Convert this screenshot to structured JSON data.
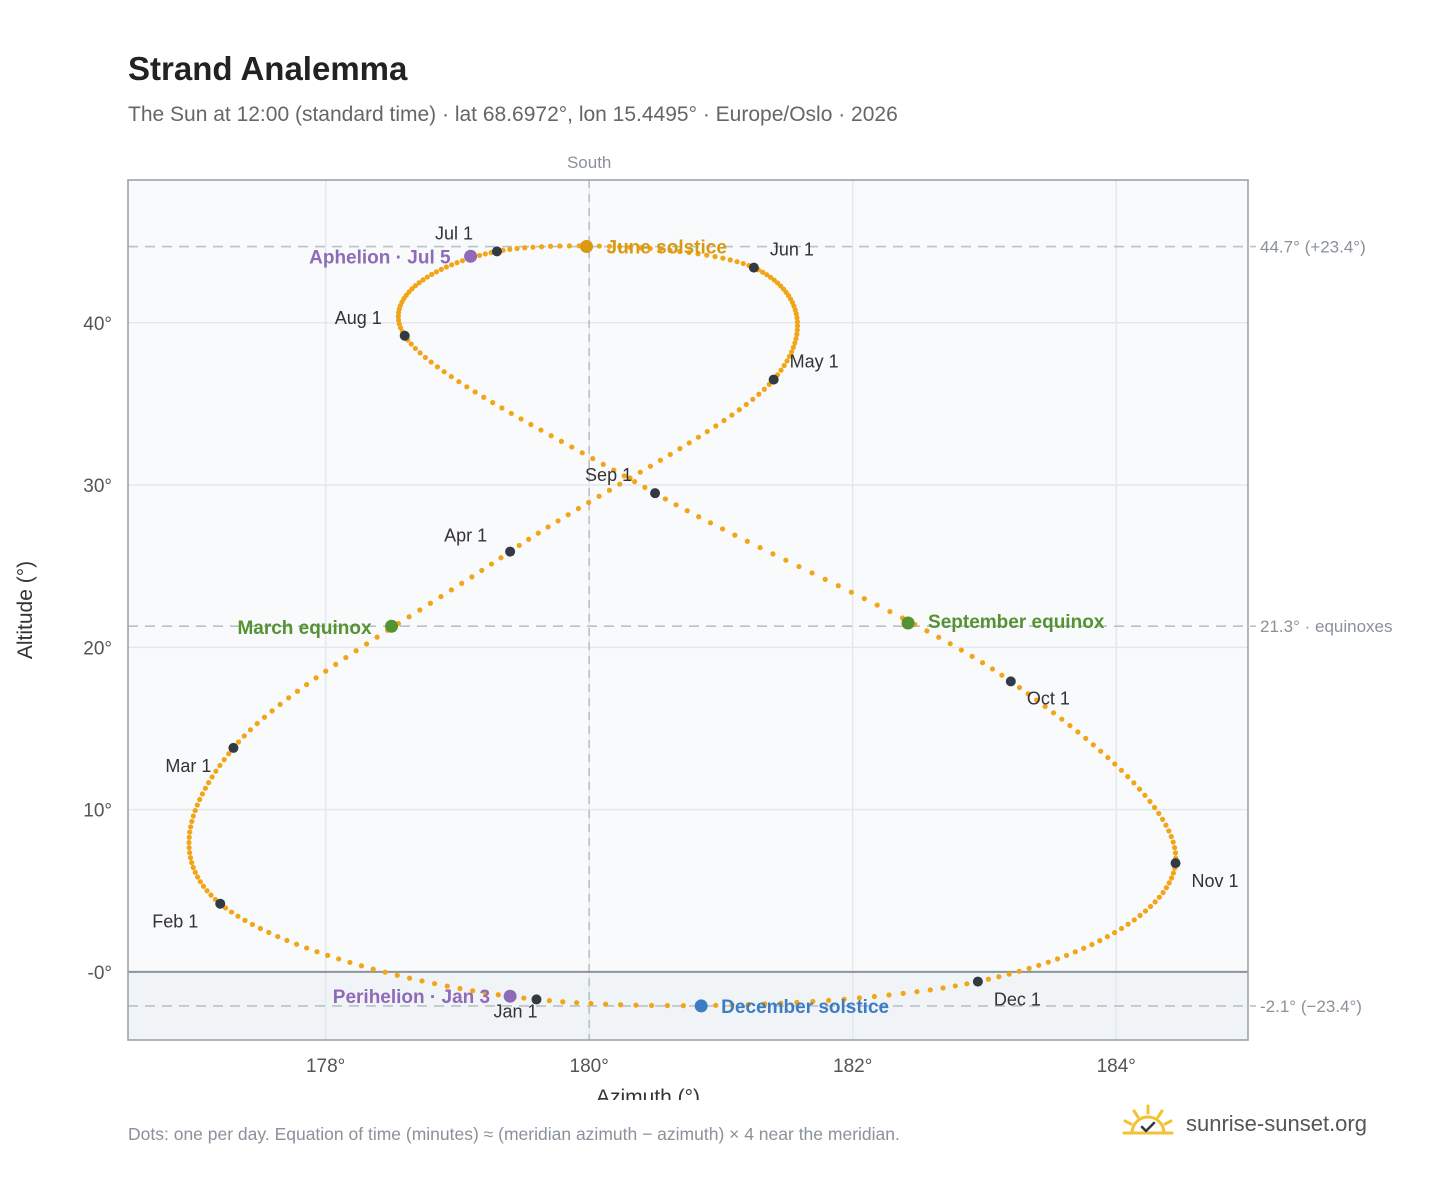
{
  "header": {
    "title": "Strand Analemma",
    "subtitle": "The Sun at 12:00 (standard time) · lat 68.6972°, lon 15.4495° · Europe/Oslo · 2026"
  },
  "footer": {
    "note": "Dots: one per day. Equation of time (minutes) ≈ (meridian azimuth − azimuth) × 4 near the meridian.",
    "brand": "sunrise-sunset.org",
    "brand_icon": "sun-check-icon"
  },
  "colors": {
    "curve": "#f2a516",
    "month_marker": "#333a44",
    "solstice_june": "#d99a12",
    "solstice_december": "#3d7cc4",
    "equinox": "#559231",
    "apsis": "#8e6ab8",
    "grid": "#e3e8ec",
    "plot_bg": "#f8fafc",
    "below_horizon_bg": "#f1f4f7",
    "ref_line": "#b9c1c9",
    "axis_text": "#555555",
    "ref_text": "#8a919a"
  },
  "chart_data": {
    "type": "scatter",
    "xlabel": "Azimuth (°)",
    "ylabel": "Altitude (°)",
    "xlim": [
      176.5,
      185.0
    ],
    "ylim": [
      -4.2,
      48.8
    ],
    "x_ticks": [
      178,
      180,
      182,
      184
    ],
    "x_tick_labels": [
      "178°",
      "180°",
      "182°",
      "184°"
    ],
    "y_ticks": [
      0,
      10,
      20,
      30,
      40
    ],
    "y_tick_labels": [
      "-0°",
      "10°",
      "20°",
      "30°",
      "40°"
    ],
    "grid": true,
    "horizon_altitude": 0,
    "south_line": {
      "azimuth": 180,
      "label": "South"
    },
    "reference_lines": [
      {
        "altitude": 44.7,
        "label": "44.7° (+23.4°)"
      },
      {
        "altitude": 21.3,
        "label": "21.3° · equinoxes"
      },
      {
        "altitude": -2.1,
        "label": "-2.1° (−23.4°)"
      }
    ],
    "analemma_anchor_dates": [
      "Jan 1",
      "Feb 1",
      "Mar 1",
      "Apr 1",
      "May 1",
      "Jun 1",
      "Jul 1",
      "Aug 1",
      "Sep 1",
      "Oct 1",
      "Nov 1",
      "Dec 1"
    ],
    "analemma_anchor_azimuth": [
      179.6,
      177.2,
      177.3,
      179.4,
      181.4,
      181.25,
      179.3,
      178.6,
      180.5,
      183.2,
      184.45,
      182.95
    ],
    "analemma_anchor_altitude": [
      -1.7,
      4.2,
      13.8,
      25.9,
      36.5,
      43.4,
      44.4,
      39.2,
      29.5,
      17.9,
      6.7,
      -0.6
    ],
    "month_markers": [
      {
        "label": "Jan 1",
        "azimuth": 179.6,
        "altitude": -1.7
      },
      {
        "label": "Feb 1",
        "azimuth": 177.2,
        "altitude": 4.2
      },
      {
        "label": "Mar 1",
        "azimuth": 177.3,
        "altitude": 13.8
      },
      {
        "label": "Apr 1",
        "azimuth": 179.4,
        "altitude": 25.9
      },
      {
        "label": "May 1",
        "azimuth": 181.4,
        "altitude": 36.5
      },
      {
        "label": "Jun 1",
        "azimuth": 181.25,
        "altitude": 43.4
      },
      {
        "label": "Jul 1",
        "azimuth": 179.3,
        "altitude": 44.4
      },
      {
        "label": "Aug 1",
        "azimuth": 178.6,
        "altitude": 39.2
      },
      {
        "label": "Sep 1",
        "azimuth": 180.5,
        "altitude": 29.5
      },
      {
        "label": "Oct 1",
        "azimuth": 183.2,
        "altitude": 17.9
      },
      {
        "label": "Nov 1",
        "azimuth": 184.45,
        "altitude": 6.7
      },
      {
        "label": "Dec 1",
        "azimuth": 182.95,
        "altitude": -0.6
      }
    ],
    "events": [
      {
        "label": "June solstice",
        "azimuth": 179.98,
        "altitude": 44.7,
        "kind": "solstice_june"
      },
      {
        "label": "December solstice",
        "azimuth": 180.85,
        "altitude": -2.1,
        "kind": "solstice_december"
      },
      {
        "label": "March equinox",
        "azimuth": 178.5,
        "altitude": 21.3,
        "kind": "equinox"
      },
      {
        "label": "September equinox",
        "azimuth": 182.42,
        "altitude": 21.5,
        "kind": "equinox"
      },
      {
        "label": "Aphelion · Jul 5",
        "azimuth": 179.1,
        "altitude": 44.1,
        "kind": "apsis"
      },
      {
        "label": "Perihelion · Jan 3",
        "azimuth": 179.4,
        "altitude": -1.5,
        "kind": "apsis"
      }
    ]
  }
}
